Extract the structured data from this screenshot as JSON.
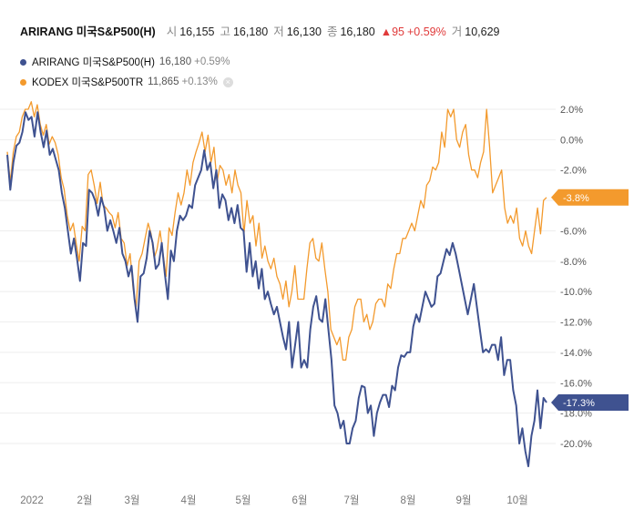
{
  "header": {
    "name": "ARIRANG 미국S&P500(H)",
    "open_label": "시",
    "open": "16,155",
    "high_label": "고",
    "high": "16,180",
    "low_label": "저",
    "low": "16,130",
    "close_label": "종",
    "close": "16,180",
    "change": "▲95",
    "change_pct": "+0.59%",
    "volume_label": "거",
    "volume": "10,629"
  },
  "legend": [
    {
      "name": "ARIRANG 미국S&P500(H)",
      "value": "16,180",
      "change": "+0.59%",
      "color": "#3f5290"
    },
    {
      "name": "KODEX 미국S&P500TR",
      "value": "11,865",
      "change": "+0.13%",
      "color": "#f39a2d"
    }
  ],
  "legend_close_icon": "close-icon",
  "chart_data": {
    "type": "line",
    "x_tick_labels": [
      "2022",
      "2월",
      "3월",
      "4월",
      "5월",
      "6월",
      "7월",
      "8월",
      "9월",
      "10월"
    ],
    "ylim": [
      -22.5,
      3.0
    ],
    "yticks": [
      2,
      0,
      -2,
      -4,
      -6,
      -8,
      -10,
      -12,
      -14,
      -16,
      -18,
      -20
    ],
    "ytick_labels": [
      "2.0%",
      "0.0%",
      "-2.0%",
      "-4.0%",
      "-6.0%",
      "-8.0%",
      "-10.0%",
      "-12.0%",
      "-14.0%",
      "-16.0%",
      "-18.0%",
      "-20.0%"
    ],
    "grid": true,
    "series": [
      {
        "name": "ARIRANG 미국S&P500(H)",
        "color": "#3f5290",
        "last_label": "-17.3%",
        "values": [
          -1.0,
          -3.3,
          -1.5,
          -0.4,
          -0.2,
          0.5,
          1.8,
          1.3,
          1.5,
          0.2,
          1.8,
          0.5,
          -0.5,
          0.6,
          -1.0,
          -0.6,
          -1.3,
          -2.0,
          -3.5,
          -4.5,
          -6.0,
          -7.5,
          -6.5,
          -7.8,
          -9.3,
          -6.8,
          -7.0,
          -3.3,
          -3.5,
          -4.0,
          -5.0,
          -3.8,
          -4.5,
          -6.0,
          -5.3,
          -6.0,
          -6.8,
          -5.8,
          -7.5,
          -8.0,
          -9.0,
          -8.3,
          -10.5,
          -12.0,
          -9.0,
          -8.8,
          -7.8,
          -6.0,
          -6.8,
          -8.5,
          -8.2,
          -6.8,
          -8.8,
          -10.5,
          -7.3,
          -8.0,
          -6.0,
          -5.0,
          -5.3,
          -5.0,
          -4.3,
          -4.5,
          -3.0,
          -2.5,
          -2.0,
          -0.7,
          -2.0,
          -1.5,
          -3.2,
          -2.0,
          -4.5,
          -3.6,
          -4.0,
          -5.3,
          -4.5,
          -5.5,
          -4.3,
          -5.8,
          -6.0,
          -8.7,
          -6.8,
          -9.0,
          -8.0,
          -9.8,
          -8.5,
          -10.5,
          -10.0,
          -10.8,
          -11.5,
          -11.0,
          -12.0,
          -13.0,
          -13.8,
          -12.0,
          -15.0,
          -13.5,
          -12.0,
          -15.0,
          -14.5,
          -15.0,
          -12.5,
          -11.0,
          -10.3,
          -11.8,
          -12.0,
          -10.5,
          -12.5,
          -14.5,
          -17.5,
          -18.0,
          -19.0,
          -18.5,
          -20.0,
          -20.0,
          -19.0,
          -18.5,
          -17.0,
          -16.2,
          -16.3,
          -18.0,
          -17.5,
          -19.5,
          -18.0,
          -17.3,
          -16.8,
          -16.8,
          -17.6,
          -16.2,
          -16.5,
          -15.0,
          -14.2,
          -14.3,
          -14.0,
          -14.0,
          -12.3,
          -11.5,
          -12.0,
          -11.0,
          -10.0,
          -10.5,
          -11.0,
          -10.8,
          -9.0,
          -8.8,
          -8.0,
          -7.2,
          -7.6,
          -6.8,
          -7.5,
          -8.5,
          -9.5,
          -10.5,
          -11.5,
          -10.5,
          -9.5,
          -11.0,
          -12.5,
          -14.0,
          -13.8,
          -14.0,
          -13.5,
          -13.5,
          -14.5,
          -13.0,
          -15.5,
          -14.5,
          -14.5,
          -16.5,
          -17.5,
          -20.0,
          -19.0,
          -20.5,
          -21.5,
          -19.5,
          -18.5,
          -16.5,
          -19.0,
          -17.0,
          -17.3
        ]
      },
      {
        "name": "KODEX 미국S&P500TR",
        "color": "#f39a2d",
        "last_label": "-3.8%",
        "values": [
          -0.8,
          -2.8,
          -0.8,
          0.2,
          0.5,
          1.5,
          2.0,
          2.0,
          2.5,
          1.5,
          2.3,
          1.0,
          0.3,
          1.0,
          -0.3,
          0.2,
          -0.2,
          -1.0,
          -2.5,
          -3.3,
          -5.0,
          -6.0,
          -5.5,
          -6.8,
          -8.0,
          -5.7,
          -6.0,
          -2.3,
          -2.0,
          -3.0,
          -4.2,
          -2.8,
          -4.3,
          -4.5,
          -4.8,
          -5.0,
          -5.8,
          -4.8,
          -6.5,
          -6.8,
          -8.3,
          -7.5,
          -9.8,
          -11.0,
          -8.0,
          -7.5,
          -6.5,
          -5.5,
          -6.2,
          -7.8,
          -7.2,
          -6.0,
          -7.5,
          -9.0,
          -5.8,
          -6.3,
          -4.8,
          -3.5,
          -4.3,
          -3.5,
          -2.0,
          -3.0,
          -1.5,
          -0.8,
          -0.2,
          0.5,
          -0.8,
          0.3,
          -1.5,
          -0.5,
          -2.8,
          -1.7,
          -2.0,
          -3.0,
          -2.3,
          -3.5,
          -2.0,
          -3.0,
          -3.5,
          -6.2,
          -4.0,
          -5.5,
          -5.0,
          -7.0,
          -5.5,
          -7.8,
          -7.0,
          -8.0,
          -8.5,
          -7.8,
          -9.0,
          -9.5,
          -10.5,
          -9.3,
          -11.0,
          -10.0,
          -8.3,
          -10.5,
          -10.5,
          -10.5,
          -8.5,
          -6.8,
          -6.5,
          -7.8,
          -8.0,
          -6.8,
          -8.5,
          -10.0,
          -12.5,
          -13.0,
          -13.5,
          -13.0,
          -14.5,
          -14.5,
          -13.0,
          -12.5,
          -11.0,
          -10.5,
          -10.5,
          -12.0,
          -11.5,
          -12.5,
          -12.0,
          -10.8,
          -10.5,
          -10.5,
          -11.0,
          -9.5,
          -9.8,
          -8.5,
          -7.5,
          -7.5,
          -6.5,
          -6.5,
          -6.0,
          -5.5,
          -6.0,
          -5.0,
          -4.0,
          -4.5,
          -3.0,
          -2.7,
          -1.8,
          -2.0,
          -1.5,
          0.5,
          -0.5,
          2.0,
          1.5,
          2.0,
          0.0,
          -0.5,
          0.5,
          1.0,
          -1.0,
          -2.0,
          -2.0,
          -2.5,
          -1.5,
          -0.8,
          2.0,
          -0.5,
          -3.5,
          -3.0,
          -2.5,
          -2.0,
          -4.5,
          -5.5,
          -5.0,
          -5.5,
          -4.5,
          -6.5,
          -7.0,
          -6.0,
          -7.0,
          -7.5,
          -6.0,
          -4.5,
          -6.2,
          -4.0,
          -3.8
        ]
      }
    ]
  }
}
